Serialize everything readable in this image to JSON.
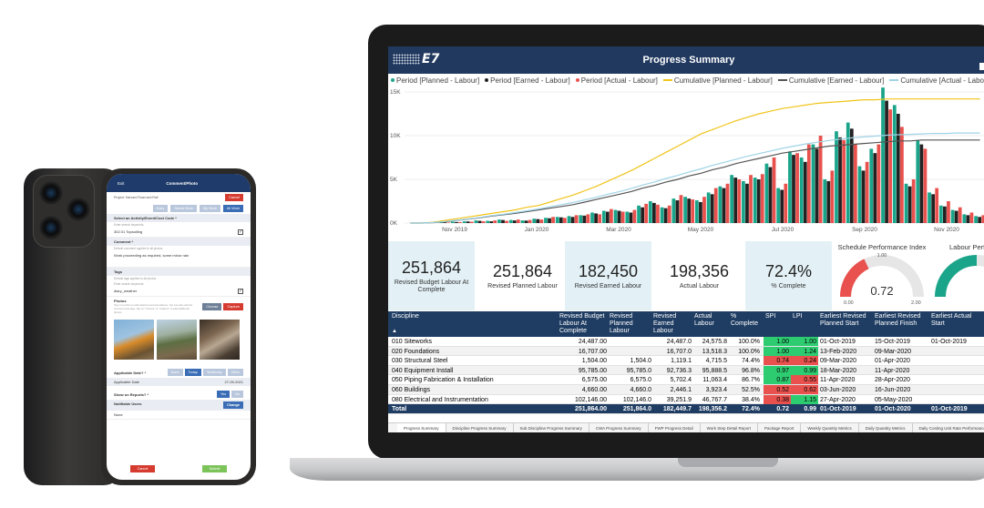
{
  "phone": {
    "exit": "Exit",
    "title": "Comment/Photo",
    "project": "Project: Harvard Road and Rail",
    "cancel_top": "Cancel",
    "filters": [
      "Diary",
      "Saved Work",
      "My Work",
      "All Work"
    ],
    "select_activity": "Select an Activity/Event/Cost Code *",
    "search_help": "Enter search keywords",
    "activity": "302.01 Topsoiling",
    "comment_label": "Comment *",
    "comment_help": "Default comment applied to all photos",
    "comment_value": "Work proceeding as required, some minor rain",
    "tags_label": "Tags",
    "tags_help": "Default tags applied to all photos",
    "tag_search_help": "Enter search keywords",
    "tag_value": "diary_weather",
    "photos_label": "Photos",
    "photos_help": "Tap on a photo to add captions and annotations. You can also edit the comment and tags. Tap on \"Choose\" or \"Capture\" to add additional photos",
    "choose": "Choose",
    "capture": "Capture",
    "applicable_label": "Applicable Date? *",
    "date_buttons": [
      "None",
      "Today",
      "Yesterday",
      "Other"
    ],
    "applicable_date_label": "Applicable Date",
    "applicable_date_value": "27-09-2021",
    "show_reports_label": "Show on Reports? *",
    "yes": "Yes",
    "no": "No",
    "notifiable_label": "Notifiable Users",
    "change": "Change",
    "notifiable_value": "None",
    "cancel_bottom": "Cancel",
    "submit": "Submit"
  },
  "dashboard": {
    "logo": "E7",
    "title": "Progress Summary",
    "legend": [
      {
        "label": "Period [Planned - Labour]",
        "color": "#1aa58a",
        "kind": "dot"
      },
      {
        "label": "Period [Earned - Labour]",
        "color": "#222222",
        "kind": "dot"
      },
      {
        "label": "Period [Actual - Labour]",
        "color": "#e8514d",
        "kind": "dot"
      },
      {
        "label": "Cumulative [Planned - Labour]",
        "color": "#f0c419",
        "kind": "line"
      },
      {
        "label": "Cumulative [Earned - Labour]",
        "color": "#555555",
        "kind": "line"
      },
      {
        "label": "Cumulative [Actual - Labour]",
        "color": "#9fd3e6",
        "kind": "line"
      }
    ],
    "kpis": [
      {
        "value": "251,864",
        "label": "Revised Budget Labour At Complete"
      },
      {
        "value": "251,864",
        "label": "Revised Planned Labour"
      },
      {
        "value": "182,450",
        "label": "Revised Earned Labour"
      },
      {
        "value": "198,356",
        "label": "Actual Labour"
      },
      {
        "value": "72.4%",
        "label": "% Complete"
      }
    ],
    "gauges": [
      {
        "title": "Schedule Performance Index",
        "value": "0.72",
        "level": 0.36,
        "min": "0.00",
        "max": "2.00",
        "mid": "1.00",
        "color": "#e8514d"
      },
      {
        "title": "Labour Perfo",
        "value": "",
        "level": 0.5,
        "min": "",
        "max": "",
        "mid": "",
        "color": "#1aa58a"
      }
    ],
    "table": {
      "headers": [
        "Discipline",
        "Revised Budget Labour At Complete",
        "Revised Planned Labour",
        "Revised Earned Labour",
        "Actual Labour",
        "% Complete",
        "SPI",
        "LPI",
        "Earliest Revised Planned Start",
        "Earliest Revised Planned Finish",
        "Earliest Actual Start"
      ],
      "rows": [
        {
          "d": "010 Siteworks",
          "b": "24,487.00",
          "p": "",
          "e": "24,487.0",
          "a": "24,575.8",
          "c": "100.0%",
          "spi": "1.00",
          "lpi": "1.00",
          "ps": "01-Oct-2019",
          "pf": "15-Oct-2019",
          "as": "01-Oct-2019",
          "spi_c": "#2ecc71",
          "lpi_c": "#2ecc71"
        },
        {
          "d": "020 Foundations",
          "b": "16,707.00",
          "p": "",
          "e": "16,707.0",
          "a": "13,518.3",
          "c": "100.0%",
          "spi": "1.00",
          "lpi": "1.24",
          "ps": "13-Feb-2020",
          "pf": "09-Mar-2020",
          "as": "",
          "spi_c": "#2ecc71",
          "lpi_c": "#2ecc71"
        },
        {
          "d": "030 Structural Steel",
          "b": "1,504.00",
          "p": "1,504.0",
          "e": "1,119.1",
          "a": "4,715.5",
          "c": "74.4%",
          "spi": "0.74",
          "lpi": "0.24",
          "ps": "09-Mar-2020",
          "pf": "01-Apr-2020",
          "as": "",
          "spi_c": "#e8514d",
          "lpi_c": "#e8514d"
        },
        {
          "d": "040 Equipment Install",
          "b": "95,785.00",
          "p": "95,785.0",
          "e": "92,736.3",
          "a": "95,888.5",
          "c": "96.8%",
          "spi": "0.97",
          "lpi": "0.99",
          "ps": "18-Mar-2020",
          "pf": "11-Apr-2020",
          "as": "",
          "spi_c": "#2ecc71",
          "lpi_c": "#2ecc71"
        },
        {
          "d": "050 Piping Fabrication & Installation",
          "b": "6,575.00",
          "p": "6,575.0",
          "e": "5,702.4",
          "a": "11,063.4",
          "c": "86.7%",
          "spi": "0.87",
          "lpi": "0.55",
          "ps": "11-Apr-2020",
          "pf": "28-Apr-2020",
          "as": "",
          "spi_c": "#2ecc71",
          "lpi_c": "#e8514d"
        },
        {
          "d": "060 Buildings",
          "b": "4,660.00",
          "p": "4,660.0",
          "e": "2,446.1",
          "a": "3,923.4",
          "c": "52.5%",
          "spi": "0.52",
          "lpi": "0.62",
          "ps": "03-Jun-2020",
          "pf": "16-Jun-2020",
          "as": "",
          "spi_c": "#e8514d",
          "lpi_c": "#e8514d"
        },
        {
          "d": "080 Electrical and Instrumentation",
          "b": "102,146.00",
          "p": "102,146.0",
          "e": "39,251.9",
          "a": "46,767.7",
          "c": "38.4%",
          "spi": "0.38",
          "lpi": "1.15",
          "ps": "27-Apr-2020",
          "pf": "05-May-2020",
          "as": "",
          "spi_c": "#e8514d",
          "lpi_c": "#2ecc71"
        }
      ],
      "total": {
        "d": "Total",
        "b": "251,864.00",
        "p": "251,864.0",
        "e": "182,449.7",
        "a": "198,356.2",
        "c": "72.4%",
        "spi": "0.72",
        "lpi": "0.99",
        "ps": "01-Oct-2019",
        "pf": "01-Oct-2020",
        "as": "01-Oct-2019"
      }
    },
    "tabs": [
      "Progress Summary",
      "Discipline Progress Summary",
      "Sub Discipline Progress Summary",
      "CWA Progress Summary",
      "FWP Progress Detail",
      "Work Step Detail Report",
      "Package Report",
      "Weekly Quantity Metrics",
      "Daily Quantity Metrics",
      "Daily Costing Unit Rate Performance"
    ]
  },
  "chart_data": {
    "type": "bar",
    "x_tick_labels": [
      "Nov 2019",
      "Jan 2020",
      "Mar 2020",
      "May 2020",
      "Jul 2020",
      "Sep 2020",
      "Nov 2020"
    ],
    "y_tick_labels": [
      "0K",
      "5K",
      "10K",
      "15K"
    ],
    "ylim": [
      0,
      15000
    ],
    "series": [
      {
        "name": "Period [Planned - Labour]",
        "color": "#1aa58a",
        "values": [
          0,
          0,
          0,
          100,
          150,
          200,
          300,
          250,
          400,
          350,
          300,
          500,
          600,
          700,
          800,
          900,
          1200,
          1400,
          1500,
          1300,
          2000,
          2500,
          1800,
          2800,
          3000,
          2600,
          3500,
          4200,
          5500,
          4800,
          5200,
          6800,
          4000,
          8200,
          7500,
          9000,
          5000,
          10500,
          11500,
          6500,
          8500,
          15500,
          13500,
          4500,
          9500,
          3500,
          2000,
          1500,
          1000,
          800
        ]
      },
      {
        "name": "Period [Earned - Labour]",
        "color": "#222222",
        "values": [
          0,
          0,
          0,
          80,
          120,
          180,
          250,
          200,
          350,
          300,
          280,
          450,
          550,
          650,
          700,
          850,
          1100,
          1300,
          1400,
          1200,
          1800,
          2300,
          1700,
          2600,
          2800,
          2400,
          3300,
          4000,
          5200,
          4500,
          5000,
          6400,
          3800,
          7800,
          7000,
          8500,
          4800,
          9800,
          10800,
          6000,
          8000,
          14000,
          12500,
          4200,
          9000,
          3300,
          1900,
          1400,
          900,
          700
        ]
      },
      {
        "name": "Period [Actual - Labour]",
        "color": "#e8514d",
        "values": [
          0,
          0,
          0,
          60,
          100,
          150,
          200,
          300,
          250,
          400,
          350,
          400,
          700,
          600,
          900,
          1000,
          1000,
          1600,
          1300,
          1500,
          2200,
          2100,
          2000,
          3200,
          2700,
          3000,
          4000,
          4500,
          5000,
          5500,
          5600,
          7500,
          4500,
          8000,
          9000,
          10000,
          6000,
          9500,
          9000,
          7000,
          9000,
          13000,
          11000,
          5000,
          8500,
          4000,
          2500,
          1800,
          1200,
          900
        ]
      }
    ],
    "cumulative": [
      {
        "name": "Cumulative [Planned - Labour]",
        "color": "#f0c419",
        "values": [
          0,
          0,
          100,
          300,
          500,
          700,
          900,
          1100,
          1300,
          1500,
          1800,
          2000,
          2400,
          2800,
          3200,
          3700,
          4200,
          4800,
          5400,
          6000,
          6700,
          7400,
          8100,
          8800,
          9500,
          10200,
          10700,
          11200,
          11700,
          12100,
          12500,
          12800,
          13100,
          13300,
          13500,
          13700,
          13800,
          13900,
          14000,
          14100,
          14100,
          14200,
          14200,
          14200,
          14200,
          14200,
          14200,
          14200,
          14200,
          14200
        ]
      },
      {
        "name": "Cumulative [Earned - Labour]",
        "color": "#555555",
        "values": [
          0,
          0,
          50,
          150,
          300,
          450,
          600,
          800,
          950,
          1100,
          1300,
          1500,
          1700,
          1900,
          2100,
          2400,
          2700,
          3000,
          3300,
          3600,
          4000,
          4300,
          4700,
          5000,
          5400,
          5700,
          6100,
          6400,
          6800,
          7100,
          7400,
          7700,
          8000,
          8200,
          8400,
          8600,
          8800,
          8900,
          9000,
          9100,
          9200,
          9300,
          9400,
          9400,
          9500,
          9500,
          9500,
          9500,
          9500,
          9500
        ]
      },
      {
        "name": "Cumulative [Actual - Labour]",
        "color": "#9fd3e6",
        "values": [
          0,
          0,
          60,
          180,
          320,
          480,
          650,
          850,
          1000,
          1200,
          1400,
          1600,
          1850,
          2100,
          2350,
          2650,
          2950,
          3300,
          3600,
          3950,
          4350,
          4700,
          5100,
          5450,
          5850,
          6200,
          6600,
          6950,
          7300,
          7650,
          7950,
          8250,
          8550,
          8800,
          9050,
          9250,
          9450,
          9600,
          9750,
          9850,
          9950,
          10050,
          10100,
          10150,
          10200,
          10250,
          10250,
          10300,
          10300,
          10300
        ]
      }
    ]
  }
}
